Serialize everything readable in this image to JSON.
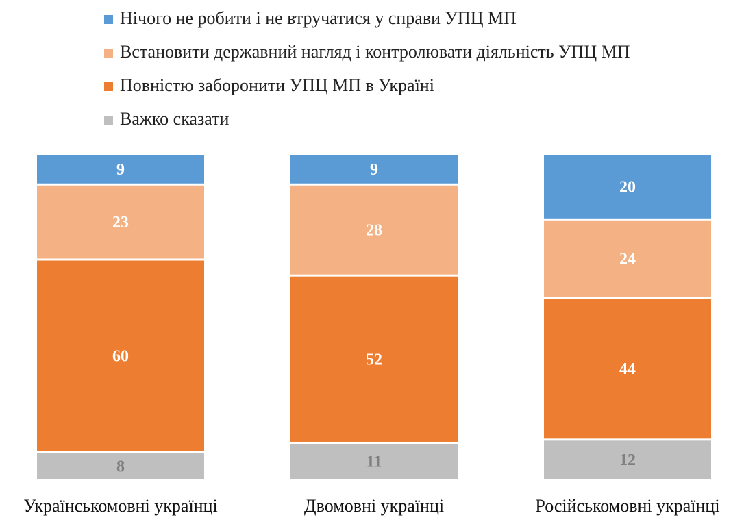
{
  "chart_data": {
    "type": "bar",
    "stacked": true,
    "percent_scale": true,
    "categories": [
      "Українськомовні українці",
      "Двомовні українці",
      "Російськомовні українці"
    ],
    "series": [
      {
        "name": "Нічого не робити і не втручатися у справи УПЦ МП",
        "color": "#5b9bd5",
        "label_color": "#ffffff",
        "values": [
          9,
          9,
          20
        ]
      },
      {
        "name": "Встановити державний нагляд і контролювати діяльність УПЦ МП",
        "color": "#f4b183",
        "label_color": "#ffffff",
        "values": [
          23,
          28,
          24
        ]
      },
      {
        "name": "Повністю заборонити УПЦ МП в Україні",
        "color": "#ed7d31",
        "label_color": "#ffffff",
        "values": [
          60,
          52,
          44
        ]
      },
      {
        "name": "Важко сказати",
        "color": "#bfbfbf",
        "label_color": "#7f7f7f",
        "values": [
          8,
          11,
          12
        ]
      }
    ],
    "legend_position": "top-left",
    "grid": false
  }
}
